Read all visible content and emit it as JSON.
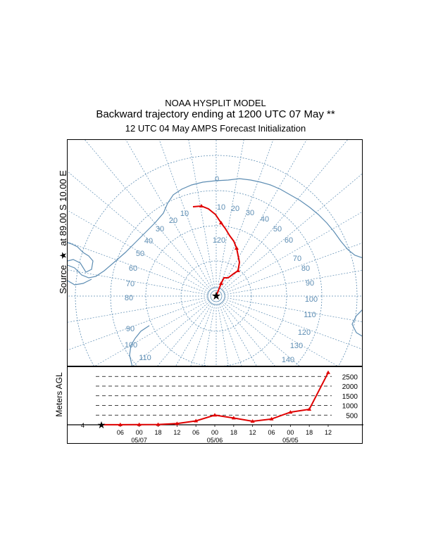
{
  "header": {
    "line1": "NOAA HYSPLIT MODEL",
    "line2": "Backward trajectory ending at 1200 UTC 07 May **",
    "line3": "12 UTC 04 May    AMPS  Forecast Initialization"
  },
  "source_label": {
    "prefix": "Source",
    "star": "★",
    "suffix": "at    89.00 S   10.00 E"
  },
  "height_axis_label": "Meters AGL",
  "colors": {
    "trajectory": "#e00000",
    "map_lines": "#5d8db3",
    "frame": "#000000"
  },
  "map": {
    "projection": "polar stereographic (south pole)",
    "longitude_labels": [
      "0",
      "10",
      "20",
      "30",
      "40",
      "50",
      "60",
      "70",
      "80",
      "90",
      "100",
      "110",
      "120",
      "130",
      "140",
      "10",
      "20",
      "30",
      "40",
      "50",
      "60",
      "70",
      "80",
      "90",
      "100",
      "110",
      "120"
    ],
    "pole_marker": "★"
  },
  "chart_data": {
    "type": "line",
    "series": [
      {
        "values_time_hours_before_end": [
          0,
          -6,
          -12,
          -18,
          -24,
          -30,
          -36,
          -42,
          -48,
          -54,
          -60,
          -66,
          -72
        ],
        "height_m_agl": [
          4,
          5,
          10,
          15,
          60,
          200,
          500,
          350,
          180,
          300,
          650,
          800,
          2700
        ]
      }
    ],
    "x_tick_labels": [
      "06",
      "00",
      "18",
      "12",
      "06",
      "00",
      "18",
      "12",
      "06",
      "00",
      "18",
      "12"
    ],
    "x_date_labels": [
      "05/07",
      "05/06",
      "05/05"
    ],
    "y_tick_labels": [
      "500",
      "1000",
      "1500",
      "2000",
      "2500"
    ],
    "y_ticks": [
      500,
      1000,
      1500,
      2000,
      2500
    ],
    "ylim": [
      0,
      2800
    ],
    "grid": "dashed horizontal",
    "start_height_label": "4"
  }
}
